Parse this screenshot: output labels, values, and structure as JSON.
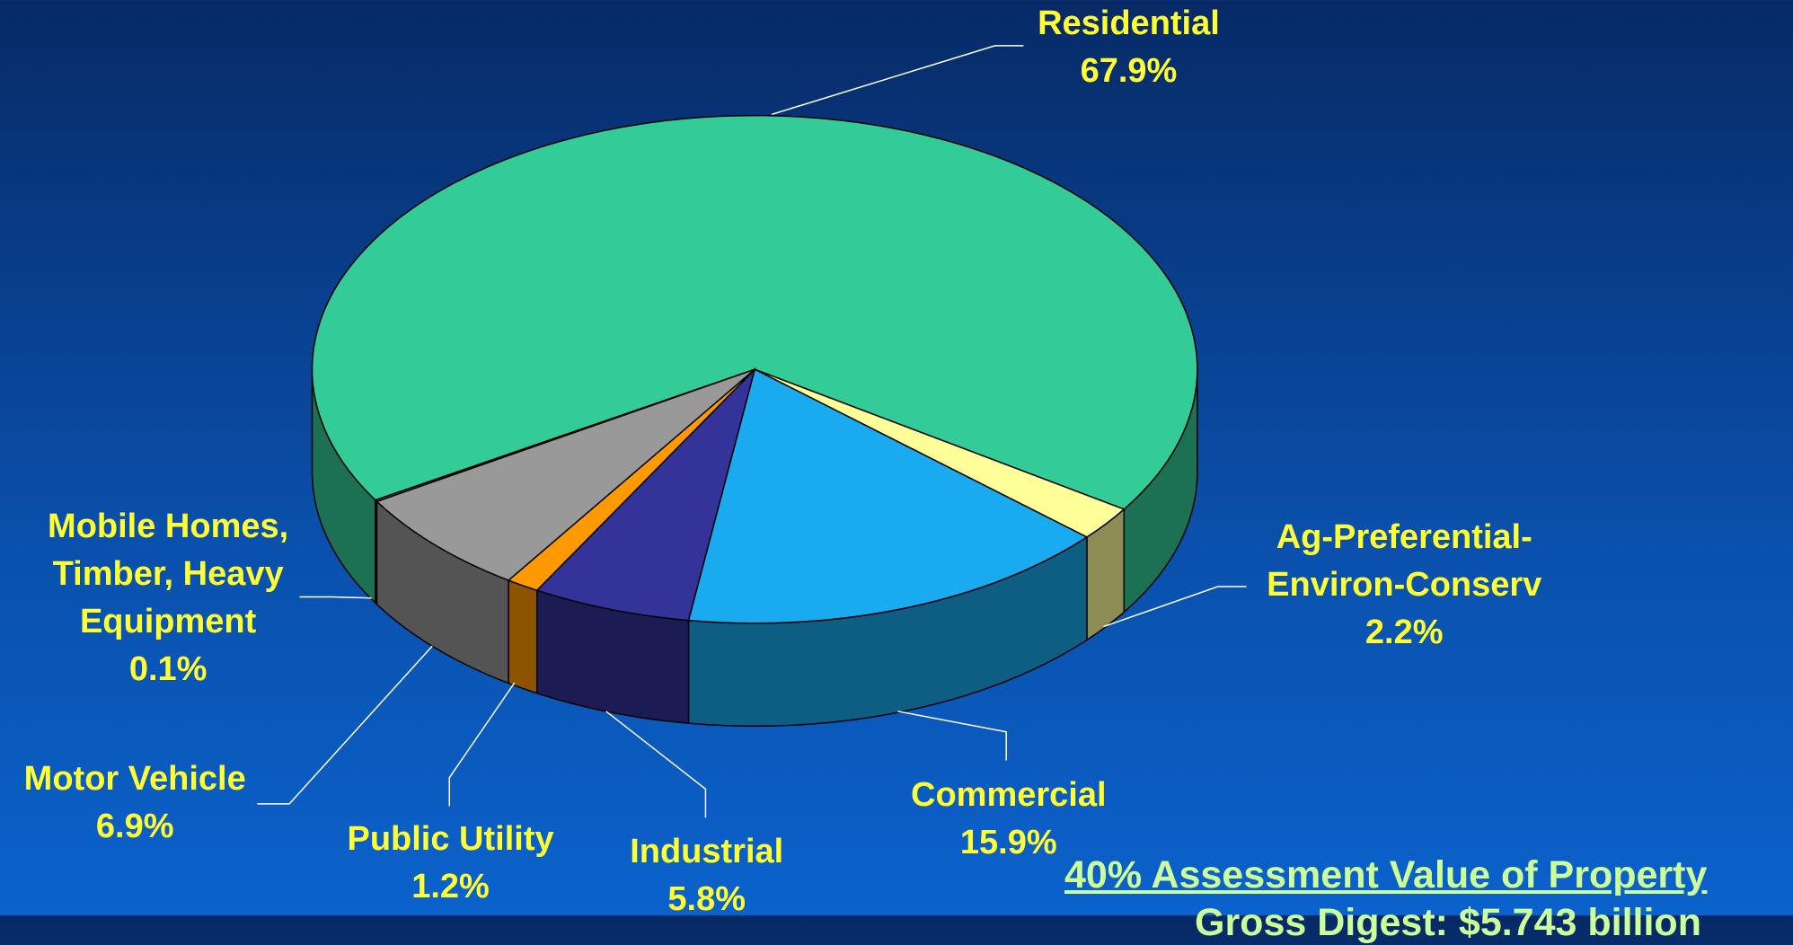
{
  "chart_data": {
    "type": "pie3d",
    "categories": [
      "Residential",
      "Ag-Preferential-Environ-Conserv",
      "Commercial",
      "Industrial",
      "Public Utility",
      "Motor Vehicle",
      "Mobile Homes, Timber, Heavy Equipment"
    ],
    "values": [
      67.9,
      2.2,
      15.9,
      5.8,
      1.2,
      6.9,
      0.1
    ],
    "value_labels": [
      "67.9%",
      "2.2%",
      "15.9%",
      "5.8%",
      "1.2%",
      "6.9%",
      "0.1%"
    ],
    "colors": [
      "#33cc99",
      "#ffff99",
      "#1aaaf0",
      "#333399",
      "#ff9900",
      "#999999",
      "#b0b0b0"
    ],
    "annotations": [
      "40% Assessment Value of Property",
      "Gross Digest: $5.743 billion"
    ]
  }
}
